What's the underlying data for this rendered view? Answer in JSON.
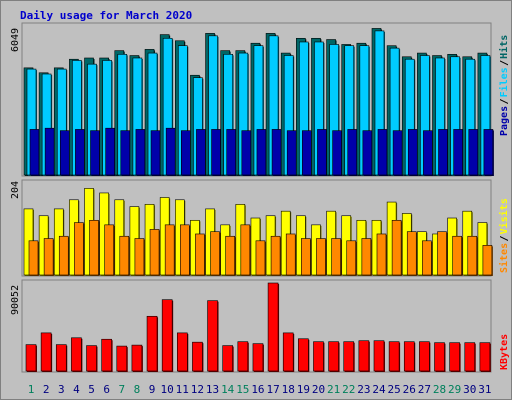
{
  "chart_data": {
    "type": "bar",
    "title": "Daily usage for March 2020",
    "categories": [
      "1",
      "2",
      "3",
      "4",
      "5",
      "6",
      "7",
      "8",
      "9",
      "10",
      "11",
      "12",
      "13",
      "14",
      "15",
      "16",
      "17",
      "18",
      "19",
      "20",
      "21",
      "22",
      "23",
      "24",
      "25",
      "26",
      "27",
      "28",
      "29",
      "30",
      "31"
    ],
    "weekend_days": [
      "1",
      "7",
      "8",
      "14",
      "15",
      "21",
      "22",
      "28",
      "29"
    ],
    "panels": [
      {
        "name": "hits-files-pages",
        "max_label": "6049",
        "ylim": [
          0,
          6049
        ],
        "series": [
          {
            "name": "Hits",
            "color": "#006666",
            "values": [
              4350,
              4150,
              4350,
              4700,
              4750,
              4750,
              5050,
              4850,
              5100,
              5700,
              5450,
              4050,
              5750,
              5050,
              5050,
              5350,
              5750,
              4950,
              5550,
              5550,
              5500,
              5300,
              5350,
              5950,
              5250,
              4800,
              4950,
              4850,
              4900,
              4800,
              4950
            ]
          },
          {
            "name": "Files",
            "color": "#00ccff",
            "values": [
              4300,
              4100,
              4300,
              4650,
              4500,
              4650,
              4900,
              4750,
              4950,
              5550,
              5250,
              3950,
              5650,
              4900,
              4950,
              5250,
              5650,
              4850,
              5400,
              5400,
              5300,
              5250,
              5250,
              5850,
              5150,
              4700,
              4850,
              4750,
              4800,
              4700,
              4850
            ]
          },
          {
            "name": "Pages",
            "color": "#0000aa",
            "values": [
              1850,
              1900,
              1800,
              1850,
              1800,
              1900,
              1800,
              1850,
              1800,
              1900,
              1800,
              1850,
              1850,
              1850,
              1800,
              1850,
              1850,
              1800,
              1800,
              1850,
              1800,
              1850,
              1800,
              1850,
              1800,
              1850,
              1800,
              1850,
              1850,
              1850,
              1850
            ]
          }
        ]
      },
      {
        "name": "visits-sites",
        "max_label": "204",
        "ylim": [
          0,
          204
        ],
        "series": [
          {
            "name": "Visits",
            "color": "#ffff00",
            "values": [
              145,
              130,
              145,
              165,
              190,
              180,
              165,
              150,
              155,
              170,
              165,
              120,
              145,
              110,
              155,
              125,
              130,
              140,
              130,
              110,
              140,
              130,
              120,
              120,
              160,
              135,
              95,
              90,
              125,
              140,
              115
            ]
          },
          {
            "name": "Sites",
            "color": "#ff8800",
            "values": [
              75,
              80,
              85,
              115,
              120,
              110,
              85,
              80,
              100,
              110,
              110,
              90,
              95,
              85,
              110,
              75,
              85,
              90,
              80,
              80,
              80,
              75,
              80,
              90,
              120,
              95,
              75,
              95,
              85,
              85,
              65
            ]
          }
        ]
      },
      {
        "name": "kbytes",
        "max_label": "90052",
        "ylim": [
          0,
          90052
        ],
        "series": [
          {
            "name": "KBytes",
            "color": "#ff0000",
            "values": [
              27000,
              39000,
              27000,
              34000,
              26000,
              32500,
              25500,
              26500,
              56000,
              73000,
              39000,
              29500,
              72000,
              26000,
              30000,
              28000,
              90052,
              39000,
              33000,
              30000,
              30000,
              30000,
              31000,
              31000,
              30000,
              30000,
              30000,
              29000,
              29000,
              29000,
              29000
            ]
          }
        ]
      }
    ],
    "legend_order": [
      {
        "panel": 0,
        "items": [
          "Pages",
          "/",
          "Files",
          "/",
          "Hits"
        ]
      },
      {
        "panel": 1,
        "items": [
          "Sites",
          "/",
          "Visits"
        ]
      },
      {
        "panel": 2,
        "items": [
          "KBytes"
        ]
      }
    ]
  },
  "colors": {
    "frame_bg": "#c0c0c0",
    "plot_bg": "#c0c0c0",
    "weekend_label": "#00805c",
    "weekday_label": "#000080",
    "separator": "#000000"
  }
}
